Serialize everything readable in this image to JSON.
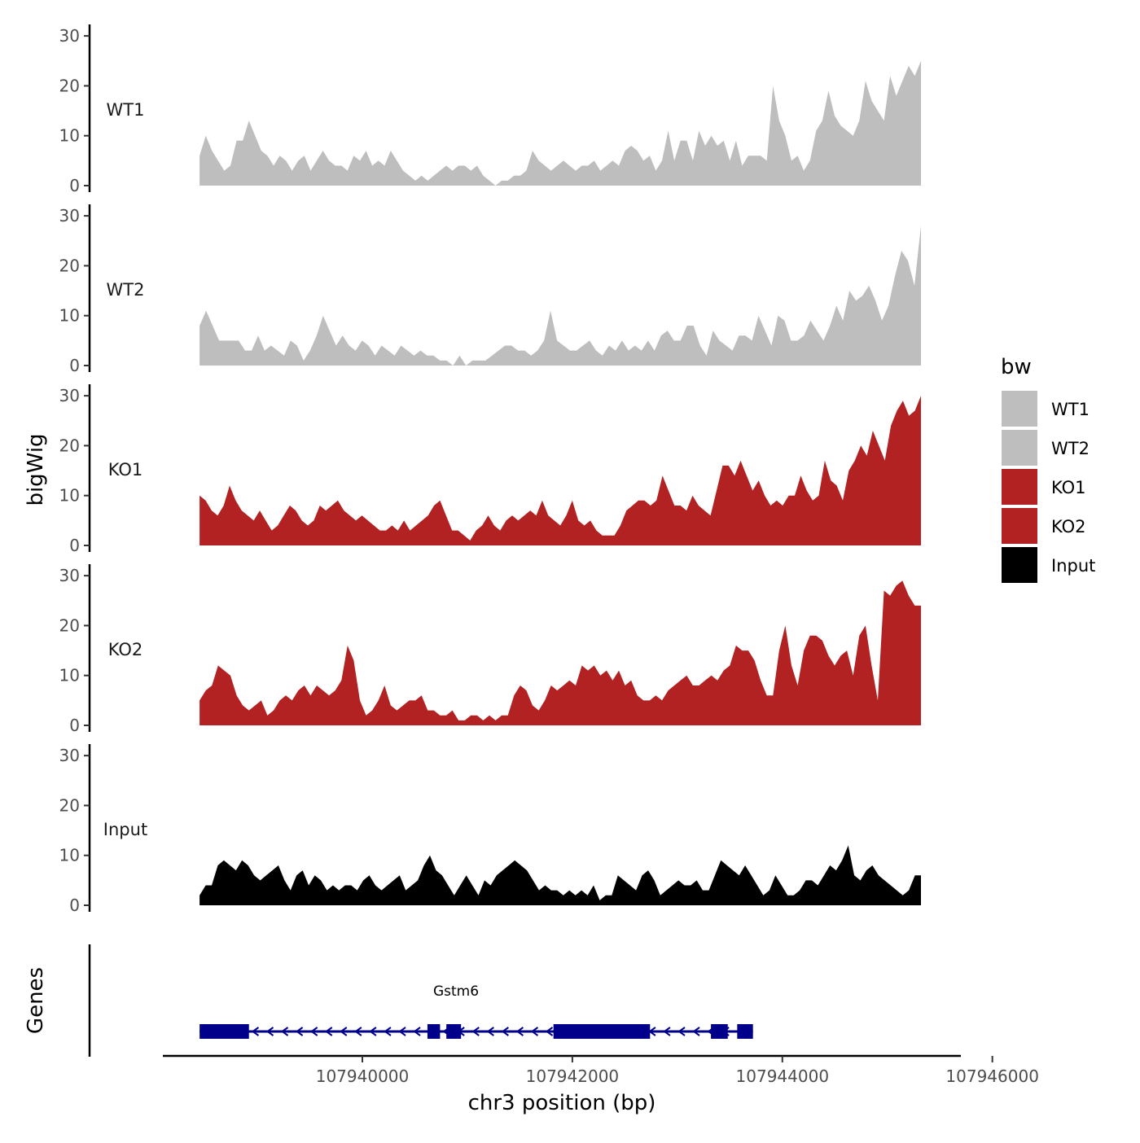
{
  "chart_data": {
    "type": "area",
    "title": "",
    "xlabel": "chr3 position (bp)",
    "ylabel": "bigWig",
    "genes_label": "Genes",
    "x_ticks": [
      107940000,
      107942000,
      107944000,
      107946000
    ],
    "x_tick_labels": [
      "107940000",
      "107942000",
      "107944000",
      "107946000"
    ],
    "xlim": [
      107938100,
      107945700
    ],
    "x_range": [
      107938450,
      107945320
    ],
    "ylim": [
      0,
      31
    ],
    "y_ticks": [
      0,
      10,
      20,
      30
    ],
    "y_tick_labels": [
      "0",
      "10",
      "20",
      "30"
    ],
    "legend_title": "bw",
    "legend": [
      {
        "label": "WT1",
        "color": "#bebebe"
      },
      {
        "label": "WT2",
        "color": "#bebebe"
      },
      {
        "label": "KO1",
        "color": "#b22222"
      },
      {
        "label": "KO2",
        "color": "#b22222"
      },
      {
        "label": "Input",
        "color": "#000000"
      }
    ],
    "series": [
      {
        "name": "WT1",
        "color": "#bebebe",
        "values": [
          6,
          10,
          7,
          5,
          3,
          4,
          9,
          9,
          13,
          10,
          7,
          6,
          4,
          6,
          5,
          3,
          5,
          6,
          3,
          5,
          7,
          5,
          4,
          4,
          3,
          6,
          5,
          7,
          4,
          5,
          4,
          7,
          5,
          3,
          2,
          1,
          2,
          1,
          2,
          3,
          4,
          3,
          4,
          4,
          3,
          4,
          2,
          1,
          0,
          1,
          1,
          2,
          2,
          3,
          7,
          5,
          4,
          3,
          4,
          5,
          4,
          3,
          4,
          4,
          5,
          3,
          4,
          5,
          4,
          7,
          8,
          7,
          5,
          6,
          3,
          5,
          11,
          5,
          9,
          9,
          5,
          11,
          8,
          10,
          8,
          9,
          5,
          9,
          4,
          6,
          6,
          6,
          5,
          20,
          13,
          10,
          5,
          6,
          3,
          5,
          11,
          13,
          19,
          14,
          12,
          11,
          10,
          13,
          21,
          17,
          15,
          13,
          22,
          18,
          21,
          24,
          22,
          25
        ]
      },
      {
        "name": "WT2",
        "color": "#bebebe",
        "values": [
          8,
          11,
          8,
          5,
          5,
          5,
          5,
          3,
          3,
          6,
          3,
          4,
          3,
          2,
          5,
          4,
          1,
          3,
          6,
          10,
          7,
          4,
          6,
          4,
          3,
          5,
          4,
          2,
          4,
          3,
          2,
          4,
          3,
          2,
          3,
          2,
          2,
          1,
          1,
          0,
          2,
          0,
          1,
          1,
          1,
          2,
          3,
          4,
          4,
          3,
          3,
          2,
          3,
          5,
          11,
          5,
          4,
          3,
          3,
          4,
          5,
          3,
          2,
          4,
          3,
          5,
          3,
          4,
          3,
          5,
          3,
          6,
          7,
          5,
          5,
          8,
          8,
          4,
          2,
          7,
          5,
          4,
          3,
          6,
          6,
          5,
          10,
          7,
          4,
          10,
          9,
          5,
          5,
          6,
          9,
          7,
          5,
          8,
          12,
          9,
          15,
          13,
          14,
          16,
          13,
          9,
          12,
          18,
          23,
          21,
          16,
          28
        ]
      },
      {
        "name": "KO1",
        "color": "#b22222",
        "values": [
          10,
          9,
          7,
          6,
          8,
          12,
          9,
          7,
          6,
          5,
          7,
          5,
          3,
          4,
          6,
          8,
          7,
          5,
          4,
          5,
          8,
          7,
          8,
          9,
          7,
          6,
          5,
          6,
          5,
          4,
          3,
          3,
          4,
          3,
          5,
          3,
          4,
          5,
          6,
          8,
          9,
          6,
          3,
          3,
          2,
          1,
          3,
          4,
          6,
          4,
          3,
          5,
          6,
          5,
          6,
          7,
          6,
          9,
          6,
          5,
          4,
          6,
          9,
          5,
          4,
          5,
          3,
          2,
          2,
          2,
          4,
          7,
          8,
          9,
          9,
          8,
          9,
          14,
          11,
          8,
          8,
          7,
          10,
          8,
          7,
          6,
          11,
          16,
          16,
          14,
          17,
          14,
          11,
          13,
          10,
          8,
          9,
          8,
          10,
          10,
          14,
          11,
          9,
          10,
          17,
          13,
          12,
          9,
          15,
          17,
          20,
          18,
          23,
          20,
          17,
          24,
          27,
          29,
          26,
          27,
          30
        ]
      },
      {
        "name": "KO2",
        "color": "#b22222",
        "values": [
          5,
          7,
          8,
          12,
          11,
          10,
          6,
          4,
          3,
          4,
          5,
          2,
          3,
          5,
          6,
          5,
          7,
          8,
          6,
          8,
          7,
          6,
          7,
          9,
          16,
          13,
          5,
          2,
          3,
          5,
          8,
          4,
          3,
          4,
          5,
          5,
          6,
          3,
          3,
          2,
          2,
          3,
          1,
          1,
          2,
          2,
          1,
          2,
          1,
          2,
          2,
          6,
          8,
          7,
          4,
          3,
          5,
          8,
          7,
          8,
          9,
          8,
          12,
          11,
          12,
          10,
          11,
          9,
          11,
          8,
          9,
          6,
          5,
          5,
          6,
          5,
          7,
          8,
          9,
          10,
          8,
          8,
          9,
          10,
          9,
          11,
          12,
          16,
          15,
          15,
          13,
          9,
          6,
          6,
          15,
          20,
          12,
          8,
          15,
          18,
          18,
          17,
          14,
          12,
          14,
          15,
          10,
          18,
          20,
          12,
          5,
          27,
          26,
          28,
          29,
          26,
          24,
          24
        ]
      },
      {
        "name": "Input",
        "color": "#000000",
        "values": [
          2,
          4,
          4,
          8,
          9,
          8,
          7,
          9,
          8,
          6,
          5,
          6,
          7,
          8,
          5,
          3,
          6,
          7,
          4,
          6,
          5,
          3,
          4,
          3,
          4,
          4,
          3,
          5,
          6,
          4,
          3,
          4,
          5,
          6,
          3,
          4,
          5,
          8,
          10,
          7,
          6,
          4,
          2,
          4,
          6,
          4,
          2,
          5,
          4,
          6,
          7,
          8,
          9,
          8,
          7,
          5,
          3,
          4,
          3,
          3,
          2,
          3,
          2,
          3,
          2,
          4,
          1,
          2,
          2,
          6,
          5,
          4,
          3,
          6,
          7,
          5,
          2,
          3,
          4,
          5,
          4,
          4,
          5,
          3,
          3,
          6,
          9,
          8,
          7,
          6,
          8,
          6,
          4,
          2,
          3,
          6,
          4,
          2,
          2,
          3,
          5,
          5,
          4,
          6,
          8,
          7,
          9,
          12,
          6,
          5,
          7,
          8,
          6,
          5,
          4,
          3,
          2,
          3,
          6,
          6
        ]
      }
    ],
    "gene": {
      "name": "Gstm6",
      "start": 107938450,
      "end": 107943720,
      "strand": "-",
      "color": "#00008b",
      "exons": [
        [
          107938450,
          107938920
        ],
        [
          107940620,
          107940740
        ],
        [
          107940800,
          107940940
        ],
        [
          107941820,
          107942740
        ],
        [
          107943320,
          107943480
        ],
        [
          107943570,
          107943720
        ]
      ]
    }
  }
}
